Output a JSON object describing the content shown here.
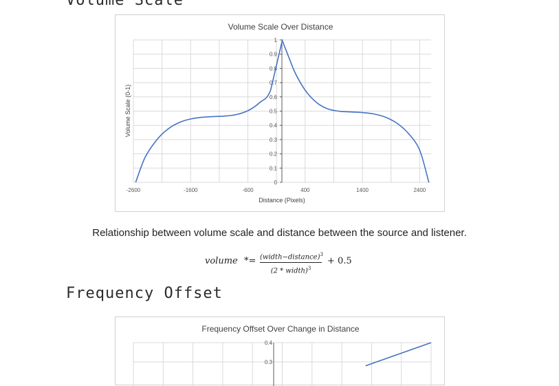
{
  "sections": {
    "volume_heading": "Volume Scale",
    "frequency_heading": "Frequency Offset"
  },
  "caption": "Relationship between volume scale and distance between the source and listener.",
  "formula": {
    "lhs": "volume",
    "operator": "*=",
    "numerator": "(width−distance)",
    "numerator_exp": "3",
    "denominator": "(2 * width)",
    "denominator_exp": "3",
    "rhs": "+ 0.5"
  },
  "colors": {
    "series": "#4472C4",
    "grid": "#d9d9d9",
    "axis": "#595959"
  },
  "chart_data": [
    {
      "type": "line",
      "title": "Volume Scale Over Distance",
      "xlabel": "Distance (Pixels)",
      "ylabel": "Volume Scale (0-1)",
      "xlim": [
        -2600,
        2600
      ],
      "ylim": [
        0,
        1
      ],
      "x_ticks": [
        "-2600",
        "-1600",
        "-600",
        "400",
        "1400",
        "2400"
      ],
      "y_ticks": [
        "0",
        "0.1",
        "0.2",
        "0.3",
        "0.4",
        "0.5",
        "0.6",
        "0.7",
        "0.8",
        "0.9",
        "1"
      ],
      "grid": true,
      "series": [
        {
          "x": [
            -2560,
            -2400,
            -2200,
            -2000,
            -1800,
            -1600,
            -1400,
            -1200,
            -1000,
            -800,
            -600,
            -400,
            -200,
            0,
            200,
            400,
            600,
            800,
            1000,
            1200,
            1400,
            1600,
            1800,
            2000,
            2200,
            2400,
            2560
          ],
          "y": [
            0.0,
            0.172,
            0.294,
            0.373,
            0.42,
            0.445,
            0.457,
            0.462,
            0.465,
            0.476,
            0.503,
            0.558,
            0.65,
            0.996,
            0.79,
            0.647,
            0.56,
            0.515,
            0.499,
            0.494,
            0.49,
            0.48,
            0.458,
            0.416,
            0.345,
            0.227,
            0.0
          ]
        }
      ]
    },
    {
      "type": "line",
      "title": "Frequency Offset Over Change in Distance",
      "xlabel": "",
      "ylabel": "",
      "y_ticks": [
        "0.4",
        "0.3"
      ],
      "grid": true,
      "series": [
        {
          "x": [
            0.78,
            1.0
          ],
          "y": [
            0.28,
            0.4
          ]
        }
      ]
    }
  ]
}
